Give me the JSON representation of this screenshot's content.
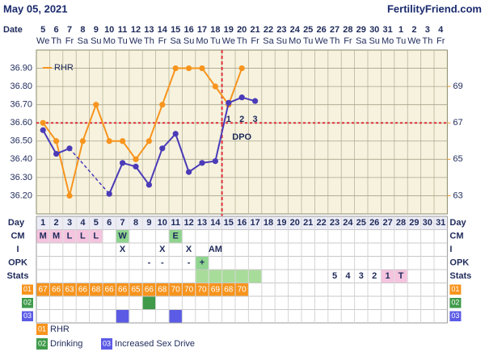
{
  "header": {
    "date": "May 05, 2021",
    "site": "FertilityFriend.com"
  },
  "chart_data": {
    "type": "line",
    "date_label": "Date",
    "categories": [
      "5",
      "6",
      "7",
      "8",
      "9",
      "10",
      "11",
      "12",
      "13",
      "14",
      "15",
      "16",
      "17",
      "18",
      "19",
      "20",
      "21",
      "22",
      "23",
      "24",
      "25",
      "26",
      "27",
      "28",
      "29",
      "30",
      "31",
      "1",
      "2",
      "3",
      "4"
    ],
    "weekdays": [
      "We",
      "Th",
      "Fr",
      "Sa",
      "Su",
      "Mo",
      "Tu",
      "We",
      "Th",
      "Fr",
      "Sa",
      "Su",
      "Mo",
      "Tu",
      "We",
      "Th",
      "Fr",
      "Sa",
      "Su",
      "Mo",
      "Tu",
      "We",
      "Th",
      "Fr",
      "Sa",
      "Su",
      "Mo",
      "Tu",
      "We",
      "Th",
      "Fr"
    ],
    "ylim": [
      36.1,
      37.0
    ],
    "yticks": [
      {
        "value": 36.2,
        "label": "36.20"
      },
      {
        "value": 36.3,
        "label": "36.30"
      },
      {
        "value": 36.4,
        "label": "36.40"
      },
      {
        "value": 36.5,
        "label": "36.50"
      },
      {
        "value": 36.6,
        "label": "36.60"
      },
      {
        "value": 36.7,
        "label": "36.70"
      },
      {
        "value": 36.8,
        "label": "36.80"
      },
      {
        "value": 36.9,
        "label": "36.90"
      }
    ],
    "y2lim": [
      62,
      71
    ],
    "y2ticks": [
      63,
      65,
      67,
      69
    ],
    "grid": true,
    "coverline": 36.6,
    "ovulation_day": 14,
    "series": [
      {
        "color": "#4b3bb8",
        "values": [
          36.56,
          36.43,
          36.46,
          null,
          null,
          36.21,
          36.38,
          36.36,
          36.26,
          36.46,
          36.54,
          36.33,
          36.38,
          36.39,
          36.71,
          36.74,
          36.72,
          null,
          null,
          null,
          null,
          null,
          null,
          null,
          null,
          null,
          null,
          null,
          null,
          null,
          null
        ]
      },
      {
        "name": "RHR",
        "color": "#f7941d",
        "axis": "y2",
        "values": [
          67,
          66,
          63,
          66,
          68,
          66,
          66,
          65,
          66,
          68,
          70,
          70,
          70,
          69,
          68,
          70,
          null,
          null,
          null,
          null,
          null,
          null,
          null,
          null,
          null,
          null,
          null,
          null,
          null,
          null,
          null
        ]
      }
    ],
    "dpo_label": "DPO",
    "dpo": [
      null,
      null,
      null,
      null,
      null,
      null,
      null,
      null,
      null,
      null,
      null,
      null,
      null,
      null,
      "1",
      "2",
      "3",
      null,
      null,
      null,
      null,
      null,
      null,
      null,
      null,
      null,
      null,
      null,
      null,
      null,
      null
    ]
  },
  "table": {
    "labels": {
      "day": "Day",
      "cm": "CM",
      "i": "I",
      "opk": "OPK",
      "stats": "Stats"
    },
    "days": [
      1,
      2,
      3,
      4,
      5,
      6,
      7,
      8,
      9,
      10,
      11,
      12,
      13,
      14,
      15,
      16,
      17,
      18,
      19,
      20,
      21,
      22,
      23,
      24,
      25,
      26,
      27,
      28,
      29,
      30,
      31
    ],
    "cm": [
      "M",
      "M",
      "L",
      "L",
      "L",
      null,
      "W",
      null,
      null,
      null,
      "E",
      null,
      null,
      null,
      null,
      null,
      null,
      null,
      null,
      null,
      null,
      null,
      null,
      null,
      null,
      null,
      null,
      null,
      null,
      null,
      null
    ],
    "cm_colors": {
      "M": "#f5c4df",
      "L": "#f5c4df",
      "W": "#8fd48f",
      "E": "#8fd48f"
    },
    "i": [
      null,
      null,
      null,
      null,
      null,
      null,
      "X",
      null,
      null,
      "X",
      null,
      "X",
      null,
      "AM",
      null,
      null,
      null,
      null,
      null,
      null,
      null,
      null,
      null,
      null,
      null,
      null,
      null,
      null,
      null,
      null,
      null
    ],
    "opk": [
      null,
      null,
      null,
      null,
      null,
      null,
      null,
      null,
      "-",
      "-",
      null,
      "-",
      "+",
      null,
      null,
      null,
      null,
      null,
      null,
      null,
      null,
      null,
      null,
      null,
      null,
      null,
      null,
      null,
      null,
      null,
      null
    ],
    "opk_colors": {
      "+": "#8fd48f"
    },
    "stats": [
      null,
      null,
      null,
      null,
      null,
      null,
      null,
      null,
      null,
      null,
      null,
      null,
      null,
      null,
      null,
      null,
      null,
      null,
      null,
      null,
      null,
      null,
      "5",
      "4",
      "3",
      "2",
      "1",
      "T",
      null,
      null,
      null
    ],
    "stats_colors": [
      null,
      null,
      null,
      null,
      null,
      null,
      null,
      null,
      null,
      null,
      null,
      null,
      "#a8dc9a",
      "#a8dc9a",
      "#a8dc9a",
      "#a8dc9a",
      "#a8dc9a",
      null,
      null,
      null,
      null,
      null,
      null,
      null,
      null,
      null,
      "#f5c4df",
      "#f5c4df",
      null,
      null,
      null
    ],
    "custom": [
      {
        "code": "01",
        "color": "#f7941d"
      },
      {
        "code": "02",
        "name": "Drinking",
        "color": "#3f9a4a",
        "days": [
          9
        ]
      },
      {
        "code": "03",
        "name": "Increased Sex Drive",
        "color": "#5b5be6",
        "days": [
          7,
          11
        ]
      }
    ]
  }
}
